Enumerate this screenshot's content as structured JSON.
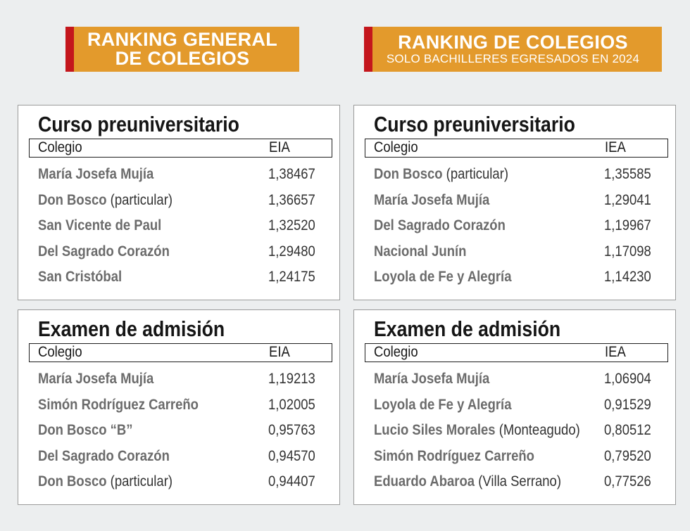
{
  "banners": {
    "left": {
      "line1": "RANKING GENERAL",
      "line2": "DE COLEGIOS"
    },
    "right": {
      "line1": "RANKING DE COLEGIOS",
      "line2": "SOLO BACHILLERES EGRESADOS EN 2024"
    }
  },
  "colors": {
    "banner": "#e39a2c",
    "accent": "#c4161c",
    "background": "#eceeef"
  },
  "panels": {
    "left_top": {
      "title": "Curso preuniversitario",
      "header": {
        "col1": "Colegio",
        "col2": "EIA"
      },
      "rows": [
        {
          "name": "María Josefa Mujía",
          "extra": "",
          "value": "1,38467"
        },
        {
          "name": "Don Bosco",
          "extra": "(particular)",
          "value": "1,36657"
        },
        {
          "name": "San Vicente de Paul",
          "extra": "",
          "value": "1,32520"
        },
        {
          "name": "Del Sagrado Corazón",
          "extra": "",
          "value": "1,29480"
        },
        {
          "name": "San Cristóbal",
          "extra": "",
          "value": "1,24175"
        }
      ]
    },
    "right_top": {
      "title": "Curso preuniversitario",
      "header": {
        "col1": "Colegio",
        "col2": "IEA"
      },
      "rows": [
        {
          "name": "Don Bosco",
          "extra": "(particular)",
          "value": "1,35585"
        },
        {
          "name": "María Josefa Mujía",
          "extra": "",
          "value": "1,29041"
        },
        {
          "name": "Del Sagrado Corazón",
          "extra": "",
          "value": "1,19967"
        },
        {
          "name": "Nacional Junín",
          "extra": "",
          "value": "1,17098"
        },
        {
          "name": "Loyola de Fe y Alegría",
          "extra": "",
          "value": "1,14230"
        }
      ]
    },
    "left_bottom": {
      "title": "Examen de admisión",
      "header": {
        "col1": "Colegio",
        "col2": "EIA"
      },
      "rows": [
        {
          "name": "María Josefa Mujía",
          "extra": "",
          "value": "1,19213"
        },
        {
          "name": "Simón Rodríguez Carreño",
          "extra": "",
          "value": "1,02005"
        },
        {
          "name": "Don Bosco “B”",
          "extra": "",
          "value": "0,95763"
        },
        {
          "name": "Del Sagrado Corazón",
          "extra": "",
          "value": "0,94570"
        },
        {
          "name": "Don Bosco",
          "extra": "(particular)",
          "value": "0,94407"
        }
      ]
    },
    "right_bottom": {
      "title": "Examen de admisión",
      "header": {
        "col1": "Colegio",
        "col2": "IEA"
      },
      "rows": [
        {
          "name": "María Josefa Mujía",
          "extra": "",
          "value": "1,06904"
        },
        {
          "name": "Loyola de Fe y Alegría",
          "extra": "",
          "value": "0,91529"
        },
        {
          "name": "Lucio Siles Morales",
          "extra": "(Monteagudo)",
          "value": "0,80512"
        },
        {
          "name": "Simón Rodríguez Carreño",
          "extra": "",
          "value": "0,79520"
        },
        {
          "name": "Eduardo Abaroa",
          "extra": "(Villa Serrano)",
          "value": "0,77526"
        }
      ]
    }
  }
}
